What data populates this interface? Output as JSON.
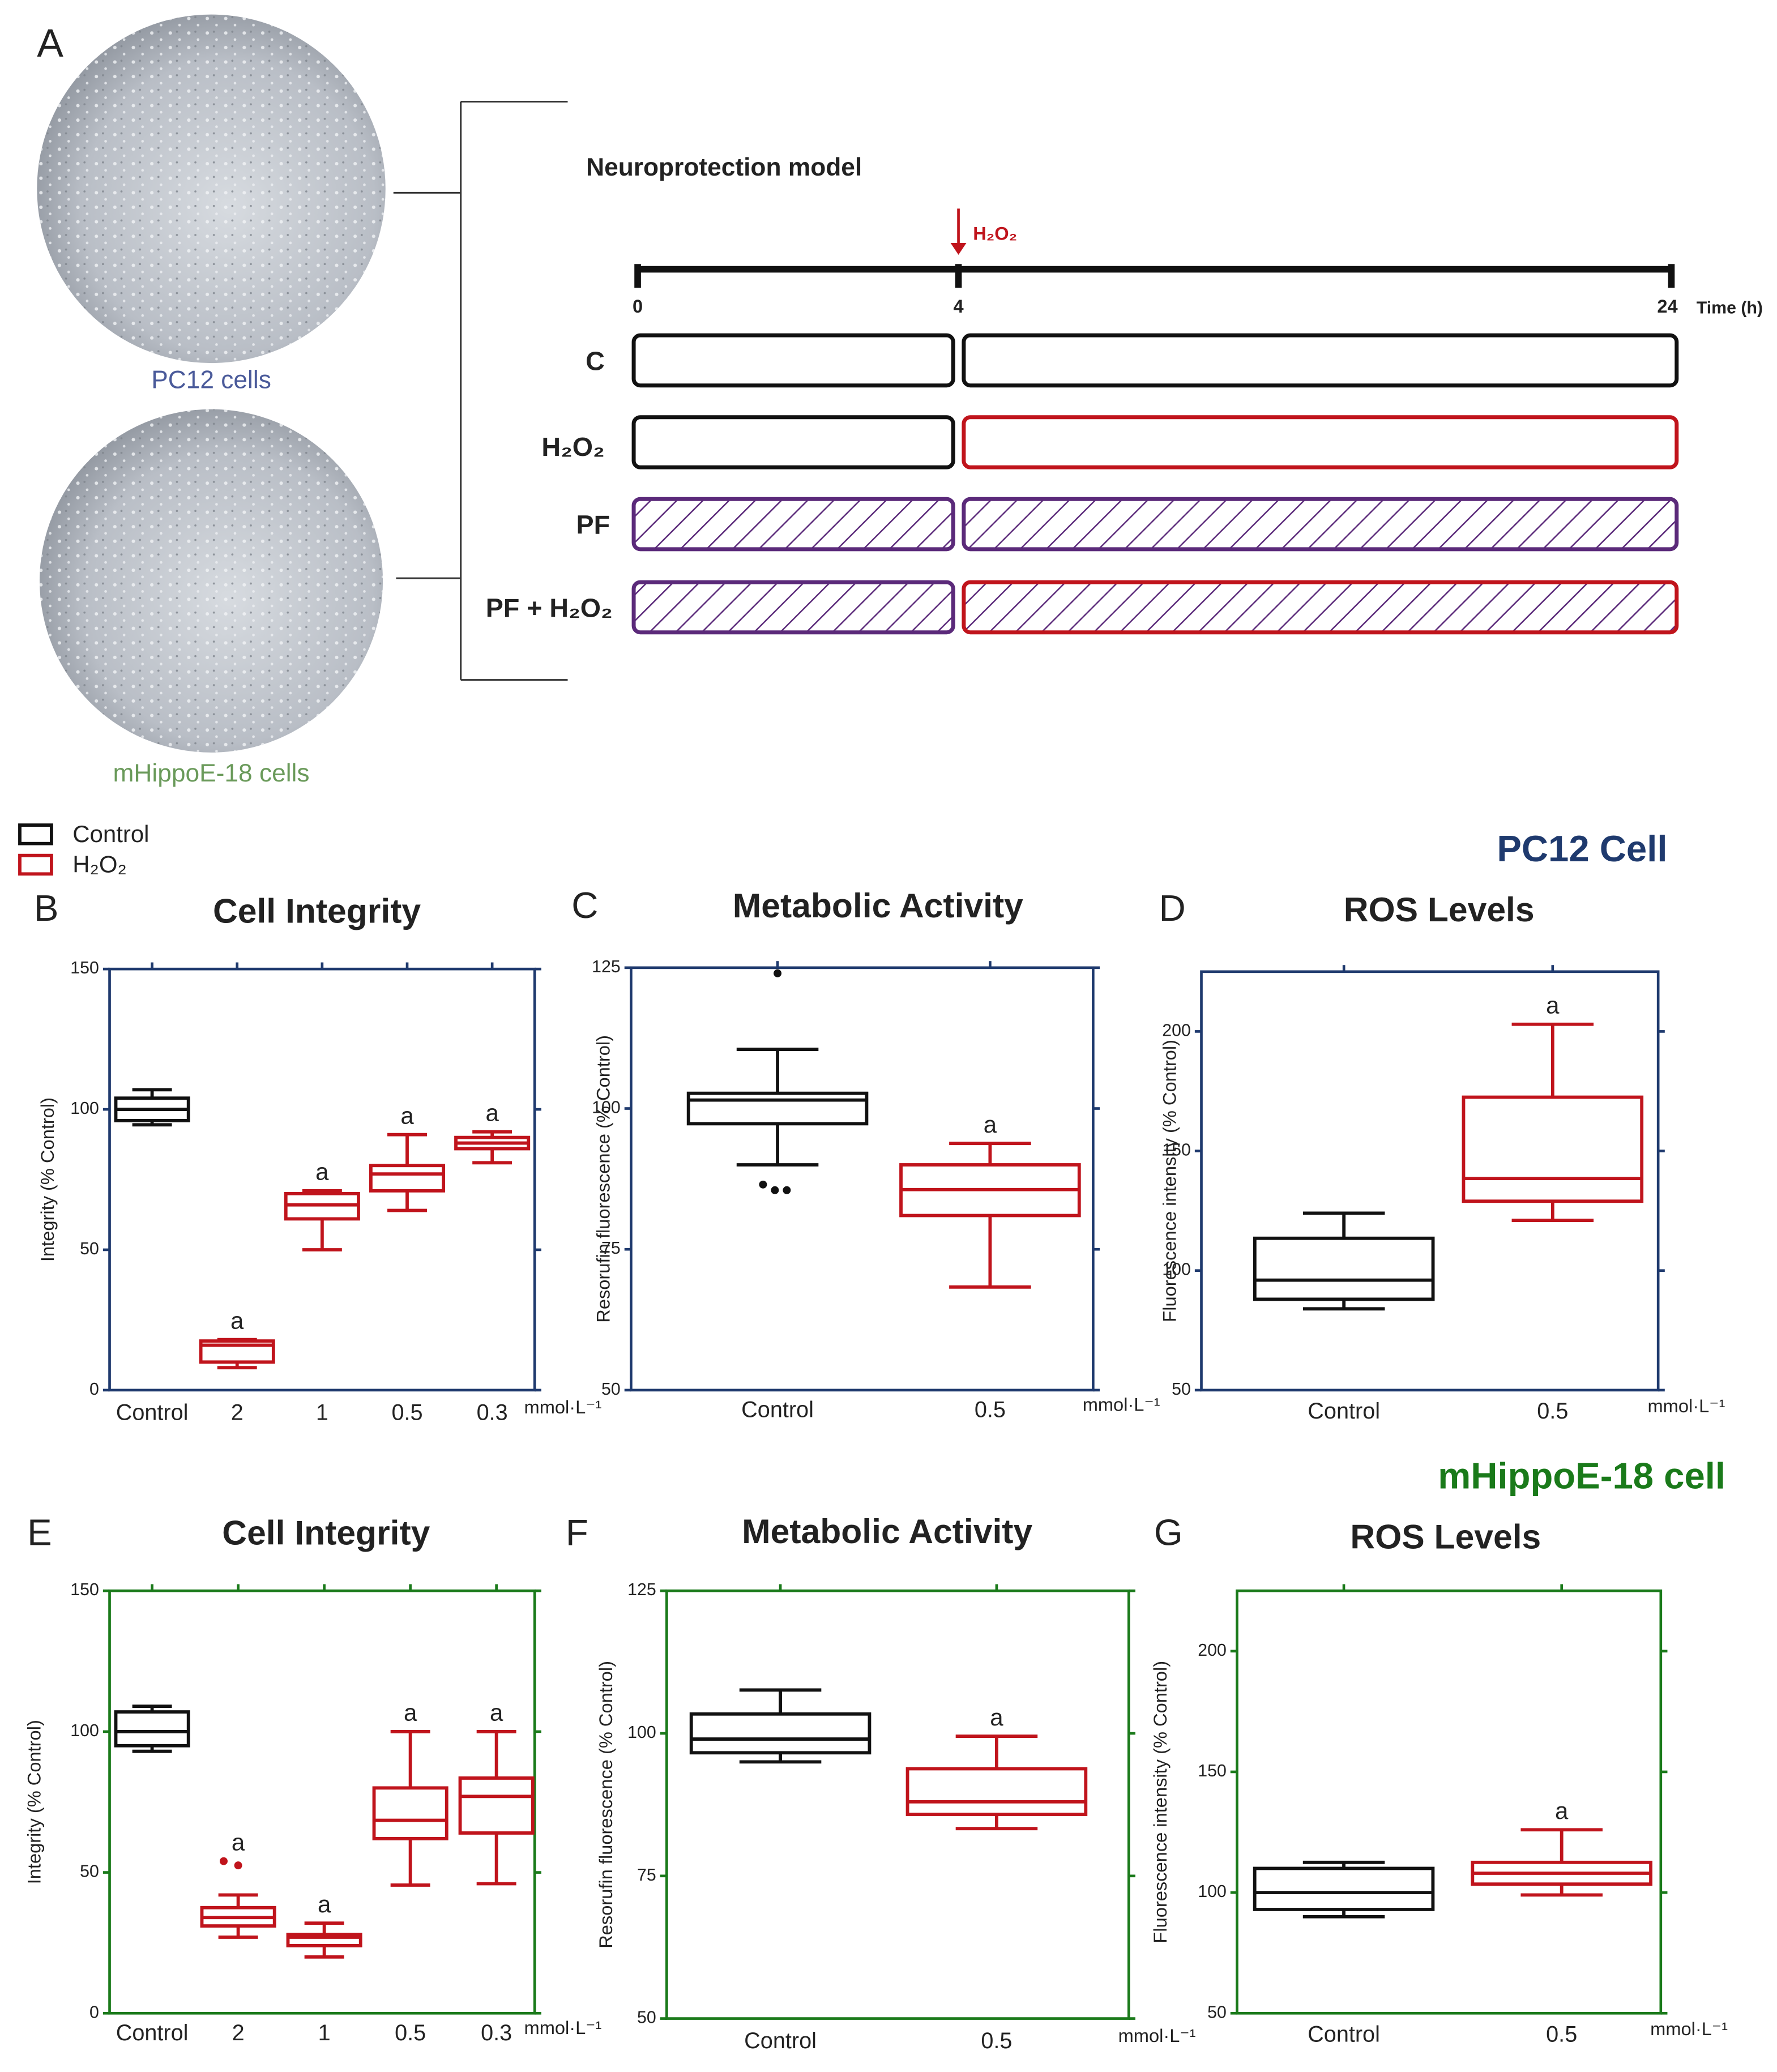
{
  "panel_a": {
    "label": "A",
    "images": [
      {
        "caption": "PC12 cells"
      },
      {
        "caption": "mHippoE-18 cells"
      }
    ],
    "diagram": {
      "title": "Neuroprotection model",
      "treatment": "H₂O₂",
      "timepoints": [
        "0",
        "4",
        "24"
      ],
      "time_label": "Time (h)",
      "rows": [
        "C",
        "H₂O₂",
        "PF",
        "PF + H₂O₂"
      ]
    }
  },
  "legend": [
    {
      "name": "Control",
      "color": "#111111"
    },
    {
      "name": "H₂O₂",
      "color": "#c0141c"
    }
  ],
  "sections": [
    {
      "title": "PC12 Cell",
      "color": "#1f3a6e"
    },
    {
      "title": "mHippoE-18 cell",
      "color": "#1a7a1a"
    }
  ],
  "chart_data": [
    {
      "type": "box",
      "panel": "B",
      "title": "Cell Integrity",
      "y_label": "Integrity (% Control)",
      "x_unit": "mmol·L⁻¹",
      "categories": [
        "Control",
        "2",
        "1",
        "0.5",
        "0.3"
      ],
      "colors": [
        "#111111",
        "#c0141c",
        "#c0141c",
        "#c0141c",
        "#c0141c"
      ],
      "frame_color": "#1f3a6e",
      "ylim": [
        0,
        150
      ],
      "yticks": [
        0,
        50,
        100,
        150
      ],
      "boxes": [
        {
          "min": 94.5,
          "q1": 96,
          "median": 100,
          "q3": 104,
          "max": 107,
          "outliers": []
        },
        {
          "min": 8,
          "q1": 10,
          "median": 16,
          "q3": 17.5,
          "max": 18,
          "outliers": []
        },
        {
          "min": 50,
          "q1": 61,
          "median": 66,
          "q3": 70,
          "max": 71,
          "outliers": []
        },
        {
          "min": 64,
          "q1": 71,
          "median": 77,
          "q3": 80,
          "max": 91,
          "outliers": []
        },
        {
          "min": 81,
          "q1": 86,
          "median": 88,
          "q3": 90,
          "max": 92,
          "outliers": []
        }
      ],
      "annotations": [
        null,
        "a",
        "a",
        "a",
        "a"
      ]
    },
    {
      "type": "box",
      "panel": "C",
      "title": "Metabolic Activity",
      "y_label": "Resorufin fluorescence (% Control)",
      "x_unit": "mmol·L⁻¹",
      "categories": [
        "Control",
        "0.5"
      ],
      "colors": [
        "#111111",
        "#c0141c"
      ],
      "frame_color": "#1f3a6e",
      "ylim": [
        50,
        125
      ],
      "yticks": [
        50,
        75,
        100,
        125
      ],
      "boxes": [
        {
          "min": 90,
          "q1": 97.3,
          "median": 101.5,
          "q3": 102.7,
          "max": 110.5,
          "outliers": [
            124,
            86.5,
            85.5,
            85.5
          ]
        },
        {
          "min": 68.3,
          "q1": 81,
          "median": 85.6,
          "q3": 90,
          "max": 93.8,
          "outliers": []
        }
      ],
      "annotations": [
        null,
        "a"
      ]
    },
    {
      "type": "box",
      "panel": "D",
      "title": "ROS Levels",
      "y_label": "Fluorescence intensity (% Control)",
      "x_unit": "mmol·L⁻¹",
      "categories": [
        "Control",
        "0.5"
      ],
      "colors": [
        "#111111",
        "#c0141c"
      ],
      "frame_color": "#1f3a6e",
      "ylim": [
        50,
        225
      ],
      "yticks": [
        50,
        100,
        150,
        200
      ],
      "boxes": [
        {
          "min": 84,
          "q1": 88,
          "median": 96,
          "q3": 113.5,
          "max": 124,
          "outliers": []
        },
        {
          "min": 121,
          "q1": 129,
          "median": 138.5,
          "q3": 172.5,
          "max": 203,
          "outliers": []
        }
      ],
      "annotations": [
        null,
        "a"
      ]
    },
    {
      "type": "box",
      "panel": "E",
      "title": "Cell Integrity",
      "y_label": "Integrity (% Control)",
      "x_unit": "mmol·L⁻¹",
      "categories": [
        "Control",
        "2",
        "1",
        "0.5",
        "0.3"
      ],
      "colors": [
        "#111111",
        "#c0141c",
        "#c0141c",
        "#c0141c",
        "#c0141c"
      ],
      "frame_color": "#1a7a1a",
      "ylim": [
        0,
        150
      ],
      "yticks": [
        0,
        50,
        100,
        150
      ],
      "boxes": [
        {
          "min": 93,
          "q1": 95,
          "median": 100,
          "q3": 107,
          "max": 109,
          "outliers": []
        },
        {
          "min": 27,
          "q1": 31,
          "median": 34,
          "q3": 37.5,
          "max": 42,
          "outliers": [
            52.5,
            54
          ]
        },
        {
          "min": 20,
          "q1": 24,
          "median": 27,
          "q3": 28,
          "max": 32,
          "outliers": []
        },
        {
          "min": 45.5,
          "q1": 62,
          "median": 68.5,
          "q3": 80,
          "max": 100,
          "outliers": []
        },
        {
          "min": 46,
          "q1": 64,
          "median": 77,
          "q3": 83.5,
          "max": 100,
          "outliers": []
        }
      ],
      "annotations": [
        null,
        "a",
        "a",
        "a",
        "a"
      ]
    },
    {
      "type": "box",
      "panel": "F",
      "title": "Metabolic Activity",
      "y_label": "Resorufin fluorescence (% Control)",
      "x_unit": "mmol·L⁻¹",
      "categories": [
        "Control",
        "0.5"
      ],
      "colors": [
        "#111111",
        "#c0141c"
      ],
      "frame_color": "#1a7a1a",
      "ylim": [
        50,
        125
      ],
      "yticks": [
        50,
        75,
        100,
        125
      ],
      "boxes": [
        {
          "min": 95,
          "q1": 96.6,
          "median": 99,
          "q3": 103.4,
          "max": 107.6,
          "outliers": []
        },
        {
          "min": 83.3,
          "q1": 85.8,
          "median": 88,
          "q3": 93.8,
          "max": 99.5,
          "outliers": []
        }
      ],
      "annotations": [
        null,
        "a"
      ]
    },
    {
      "type": "box",
      "panel": "G",
      "title": "ROS Levels",
      "y_label": "Fluorescence intensity (% Control)",
      "x_unit": "mmol·L⁻¹",
      "categories": [
        "Control",
        "0.5"
      ],
      "colors": [
        "#111111",
        "#c0141c"
      ],
      "frame_color": "#1a7a1a",
      "ylim": [
        50,
        225
      ],
      "yticks": [
        50,
        100,
        150,
        200
      ],
      "boxes": [
        {
          "min": 90,
          "q1": 93,
          "median": 100,
          "q3": 110,
          "max": 112.5,
          "outliers": []
        },
        {
          "min": 99,
          "q1": 103.5,
          "median": 108,
          "q3": 112.5,
          "max": 126,
          "outliers": []
        }
      ],
      "annotations": [
        null,
        "a"
      ]
    }
  ]
}
